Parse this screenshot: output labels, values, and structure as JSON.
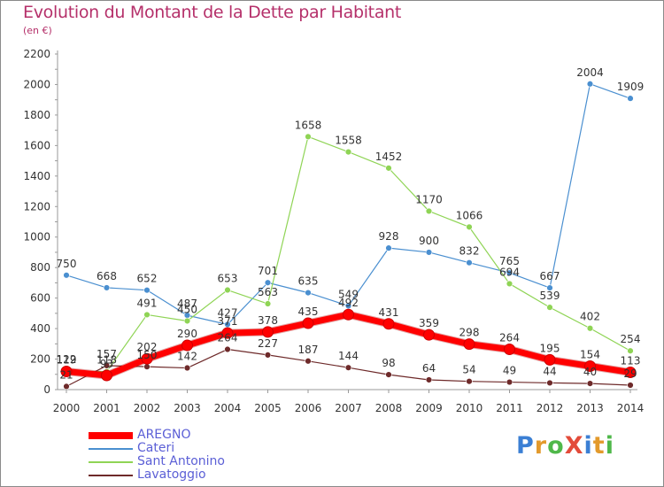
{
  "title": "Evolution du Montant de la Dette par Habitant",
  "subtitle": "(en €)",
  "logo": {
    "text": "ProXiti",
    "colors": [
      "#3b7fd4",
      "#e39a2c",
      "#4fb84a",
      "#e34b3a",
      "#3b7fd4",
      "#e39a2c",
      "#4fb84a"
    ]
  },
  "chart_data": {
    "type": "line",
    "categories": [
      "2000",
      "2001",
      "2002",
      "2003",
      "2004",
      "2005",
      "2006",
      "2007",
      "2008",
      "2009",
      "2010",
      "2011",
      "2012",
      "2013",
      "2014"
    ],
    "ylim": [
      0,
      2200
    ],
    "yticks": [
      0,
      200,
      400,
      600,
      800,
      1000,
      1200,
      1400,
      1600,
      1800,
      2000,
      2200
    ],
    "grid": false,
    "legend": "bottom-left",
    "series": [
      {
        "name": "Cateri",
        "color": "#4a8fd0",
        "values": [
          750,
          668,
          652,
          487,
          427,
          701,
          635,
          549,
          928,
          900,
          832,
          765,
          667,
          2004,
          1909
        ]
      },
      {
        "name": "Sant Antonino",
        "color": "#8fd455",
        "values": [
          122,
          118,
          491,
          450,
          653,
          563,
          1658,
          1558,
          1452,
          1170,
          1066,
          694,
          539,
          402,
          254
        ]
      },
      {
        "name": "Lavatoggio",
        "color": "#6e2a2a",
        "values": [
          21,
          157,
          150,
          142,
          264,
          227,
          187,
          144,
          98,
          64,
          54,
          49,
          44,
          40,
          29
        ]
      },
      {
        "name": "AREGNO",
        "color": "#ff0000",
        "values": [
          119,
          93,
          202,
          290,
          371,
          378,
          435,
          492,
          431,
          359,
          298,
          264,
          195,
          154,
          113
        ]
      }
    ]
  }
}
